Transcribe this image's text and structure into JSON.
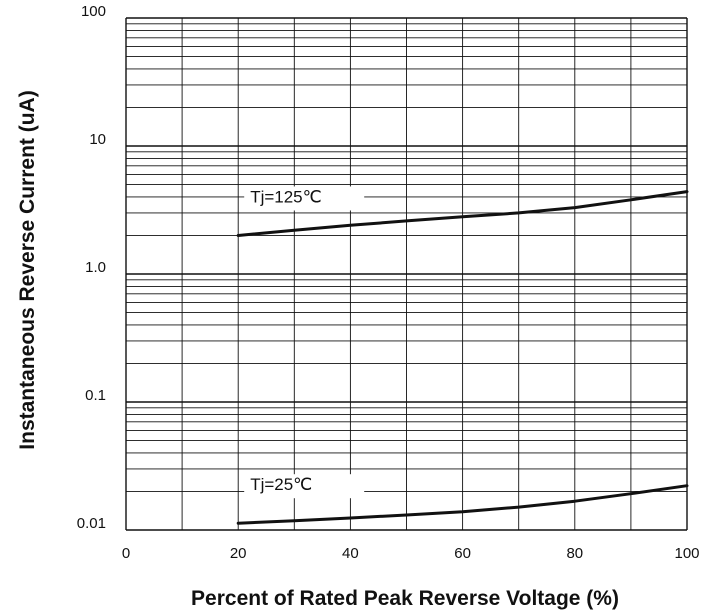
{
  "chart_data": {
    "type": "line",
    "title": "",
    "xlabel": "Percent of Rated Peak Reverse Voltage (%)",
    "ylabel": "Instantaneous Reverse Current (uA)",
    "xlim": [
      0,
      100
    ],
    "ylim": [
      0.01,
      100
    ],
    "yscale": "log",
    "grid": true,
    "x_ticks": [
      0,
      20,
      40,
      60,
      80,
      100
    ],
    "x_tick_labels": [
      "0",
      "20",
      "40",
      "60",
      "80",
      "100"
    ],
    "y_ticks": [
      0.01,
      0.1,
      1,
      10,
      100
    ],
    "y_tick_labels": [
      "0.01",
      "0.1",
      "1.0",
      "10",
      "100"
    ],
    "series": [
      {
        "name": "Tj=125℃",
        "x": [
          20,
          30,
          40,
          50,
          60,
          70,
          80,
          90,
          100
        ],
        "y": [
          2.0,
          2.2,
          2.4,
          2.6,
          2.8,
          3.0,
          3.3,
          3.8,
          4.4
        ]
      },
      {
        "name": "Tj=25℃",
        "x": [
          20,
          30,
          40,
          50,
          60,
          70,
          80,
          90,
          100
        ],
        "y": [
          0.0113,
          0.0118,
          0.0124,
          0.0131,
          0.0139,
          0.0151,
          0.0168,
          0.0192,
          0.0222
        ]
      }
    ],
    "color": "#111111"
  }
}
